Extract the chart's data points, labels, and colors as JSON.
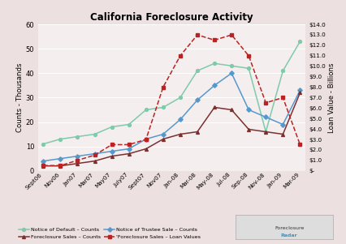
{
  "title": "California Foreclosure Activity",
  "ylabel_left": "Counts - Thousands",
  "ylabel_right": "Loan Value - Billions",
  "x_labels": [
    "Sept06",
    "Nov06",
    "Jan07",
    "Mar07",
    "May07",
    "July07",
    "Sept07",
    "Nov07",
    "Jan-08",
    "Mar-08",
    "May-08",
    "Jul-08",
    "Sep-08",
    "Nov-08",
    "Jan-09",
    "Mar-09"
  ],
  "nod": [
    11,
    13,
    14,
    15,
    18,
    19,
    25,
    26,
    30,
    30,
    41,
    44,
    43,
    43,
    42,
    16,
    41,
    42,
    53
  ],
  "fsc": [
    2,
    2,
    3,
    4,
    6,
    7,
    7,
    8,
    9,
    13,
    13,
    15,
    15,
    16,
    21,
    26,
    29,
    25,
    17,
    16,
    16,
    15,
    32
  ],
  "nts": [
    4,
    5,
    6,
    6,
    7,
    8,
    9,
    10,
    13,
    14,
    15,
    20,
    21,
    23,
    24,
    29,
    30,
    35,
    40,
    37,
    25,
    22,
    27,
    28,
    19,
    33
  ],
  "fslv": [
    0.5,
    0.5,
    1.0,
    1.5,
    2.0,
    2.5,
    2.5,
    3.0,
    8.0,
    8.5,
    13.0,
    7.5,
    7.0,
    11.0,
    13.0,
    8.0,
    12.5,
    12.5,
    13.0,
    11.0,
    6.5,
    7.5,
    9.0,
    7.0,
    2.5
  ],
  "nod_color": "#7ECBA9",
  "nts_color": "#5599CC",
  "fsc_color": "#7B3030",
  "fslv_color": "#BB2222",
  "bg_color": "#F2EAEA",
  "plot_bg": "#F5EEEE",
  "outer_bg": "#EDE0E0",
  "ylim_left": [
    0,
    60
  ],
  "ylim_right": [
    0,
    14
  ],
  "left_yticks": [
    0,
    10,
    20,
    30,
    40,
    50,
    60
  ],
  "right_ytick_vals": [
    0,
    1,
    2,
    3,
    4,
    5,
    6,
    7,
    8,
    9,
    10,
    11,
    12,
    13,
    14
  ],
  "right_ytick_labels": [
    "$-",
    "$1.0",
    "$2.0",
    "$3.0",
    "$4.0",
    "$5.0",
    "$6.0",
    "$7.0",
    "$8.0",
    "$9.0",
    "$10.0",
    "$11.0",
    "$12.0",
    "$13.0",
    "$14.0"
  ],
  "legend_nod": "Notice of Default – Counts",
  "legend_fsc": "Foreclosure Sales – Counts",
  "legend_nts": "Notice of Trustee Sale – Counts",
  "legend_fslv": "'Foreclosure Sales – Loan Values"
}
